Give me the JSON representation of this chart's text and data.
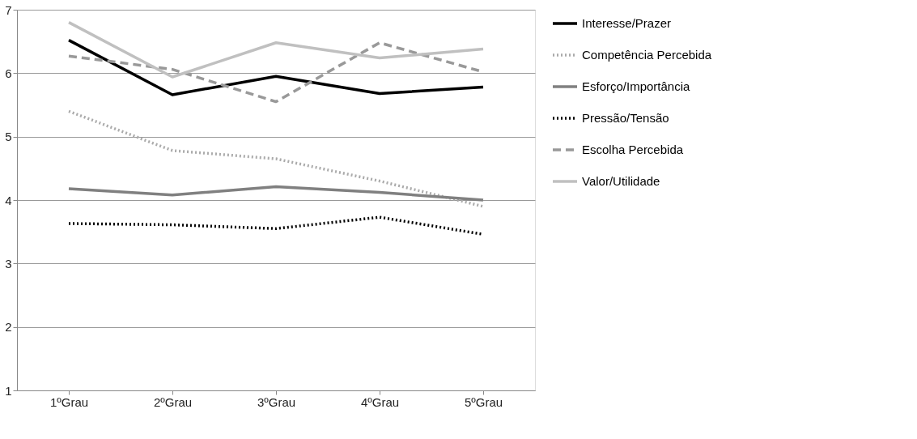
{
  "chart_data": {
    "type": "line",
    "categories": [
      "1ºGrau",
      "2ºGrau",
      "3ºGrau",
      "4ºGrau",
      "5ºGrau"
    ],
    "ylim": [
      1,
      7
    ],
    "yticks": [
      1,
      2,
      3,
      4,
      5,
      6,
      7
    ],
    "grid": "y",
    "legend": "right",
    "marker": "none",
    "series": [
      {
        "name": "Interesse/Prazer",
        "color": "#000000",
        "line_style": "solid",
        "values": [
          6.52,
          5.66,
          5.95,
          5.68,
          5.78
        ]
      },
      {
        "name": "Competência Percebida",
        "color": "#aaaaaa",
        "line_style": "dotted",
        "values": [
          5.4,
          4.78,
          4.65,
          4.3,
          3.9
        ]
      },
      {
        "name": "Esforço/Importância",
        "color": "#808080",
        "line_style": "solid",
        "values": [
          4.18,
          4.08,
          4.21,
          4.12,
          4.0
        ]
      },
      {
        "name": "Pressão/Tensão",
        "color": "#000000",
        "line_style": "dotted",
        "values": [
          3.63,
          3.61,
          3.55,
          3.73,
          3.46
        ]
      },
      {
        "name": "Escolha Percebida",
        "color": "#999999",
        "line_style": "dashed",
        "values": [
          6.27,
          6.06,
          5.55,
          6.48,
          6.02
        ]
      },
      {
        "name": "Valor/Utilidade",
        "color": "#c0c0c0",
        "line_style": "solid",
        "values": [
          6.8,
          5.94,
          6.48,
          6.24,
          6.38
        ]
      }
    ]
  }
}
